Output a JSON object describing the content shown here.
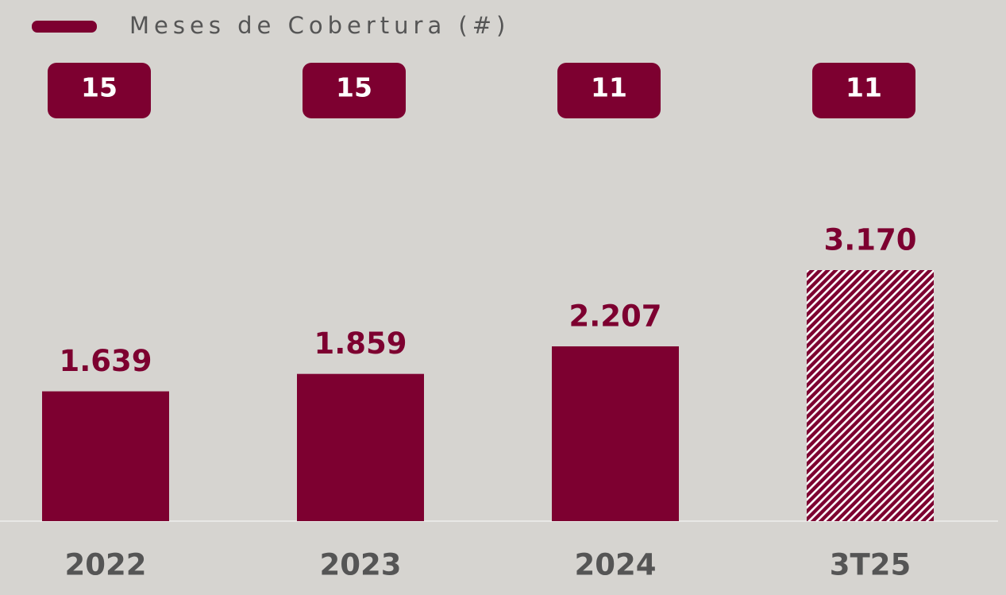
{
  "chart_data": {
    "type": "bar",
    "categories": [
      "2022",
      "2023",
      "2024",
      "3T25"
    ],
    "values": [
      1639,
      1859,
      2207,
      3170
    ],
    "value_labels": [
      "1.639",
      "1.859",
      "2.207",
      "3.170"
    ],
    "color": "#7d0030",
    "bar_styles": [
      "solid",
      "solid",
      "solid",
      "hatched"
    ],
    "coverage": {
      "name": "Meses de Cobertura (#)",
      "color": "#7d0030",
      "values": [
        15,
        15,
        11,
        11
      ]
    }
  }
}
